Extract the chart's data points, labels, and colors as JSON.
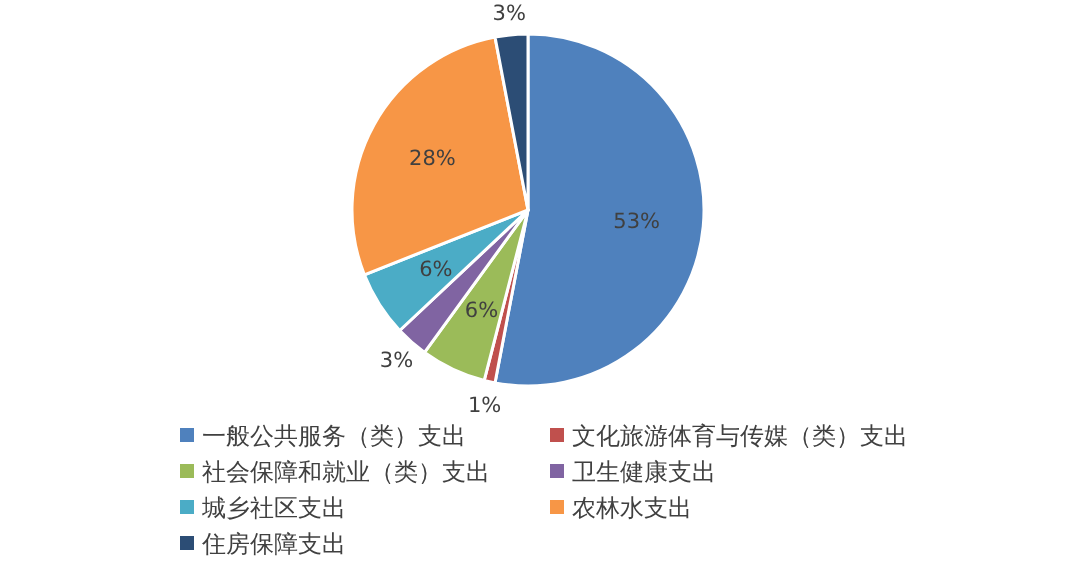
{
  "chart_data": {
    "type": "pie",
    "categories": [
      "一般公共服务（类）支出",
      "文化旅游体育与传媒（类）支出",
      "社会保障和就业（类）支出",
      "卫生健康支出",
      "城乡社区支出",
      "农林水支出",
      "住房保障支出"
    ],
    "values": [
      53,
      1,
      6,
      3,
      6,
      28,
      3
    ],
    "value_labels": [
      "53%",
      "1%",
      "6%",
      "3%",
      "6%",
      "28%",
      "3%"
    ],
    "colors": [
      "#4f81bd",
      "#c0504d",
      "#9bbb59",
      "#8064a2",
      "#4bacc6",
      "#f79646",
      "#2c4d75"
    ],
    "legend": "bottom"
  }
}
